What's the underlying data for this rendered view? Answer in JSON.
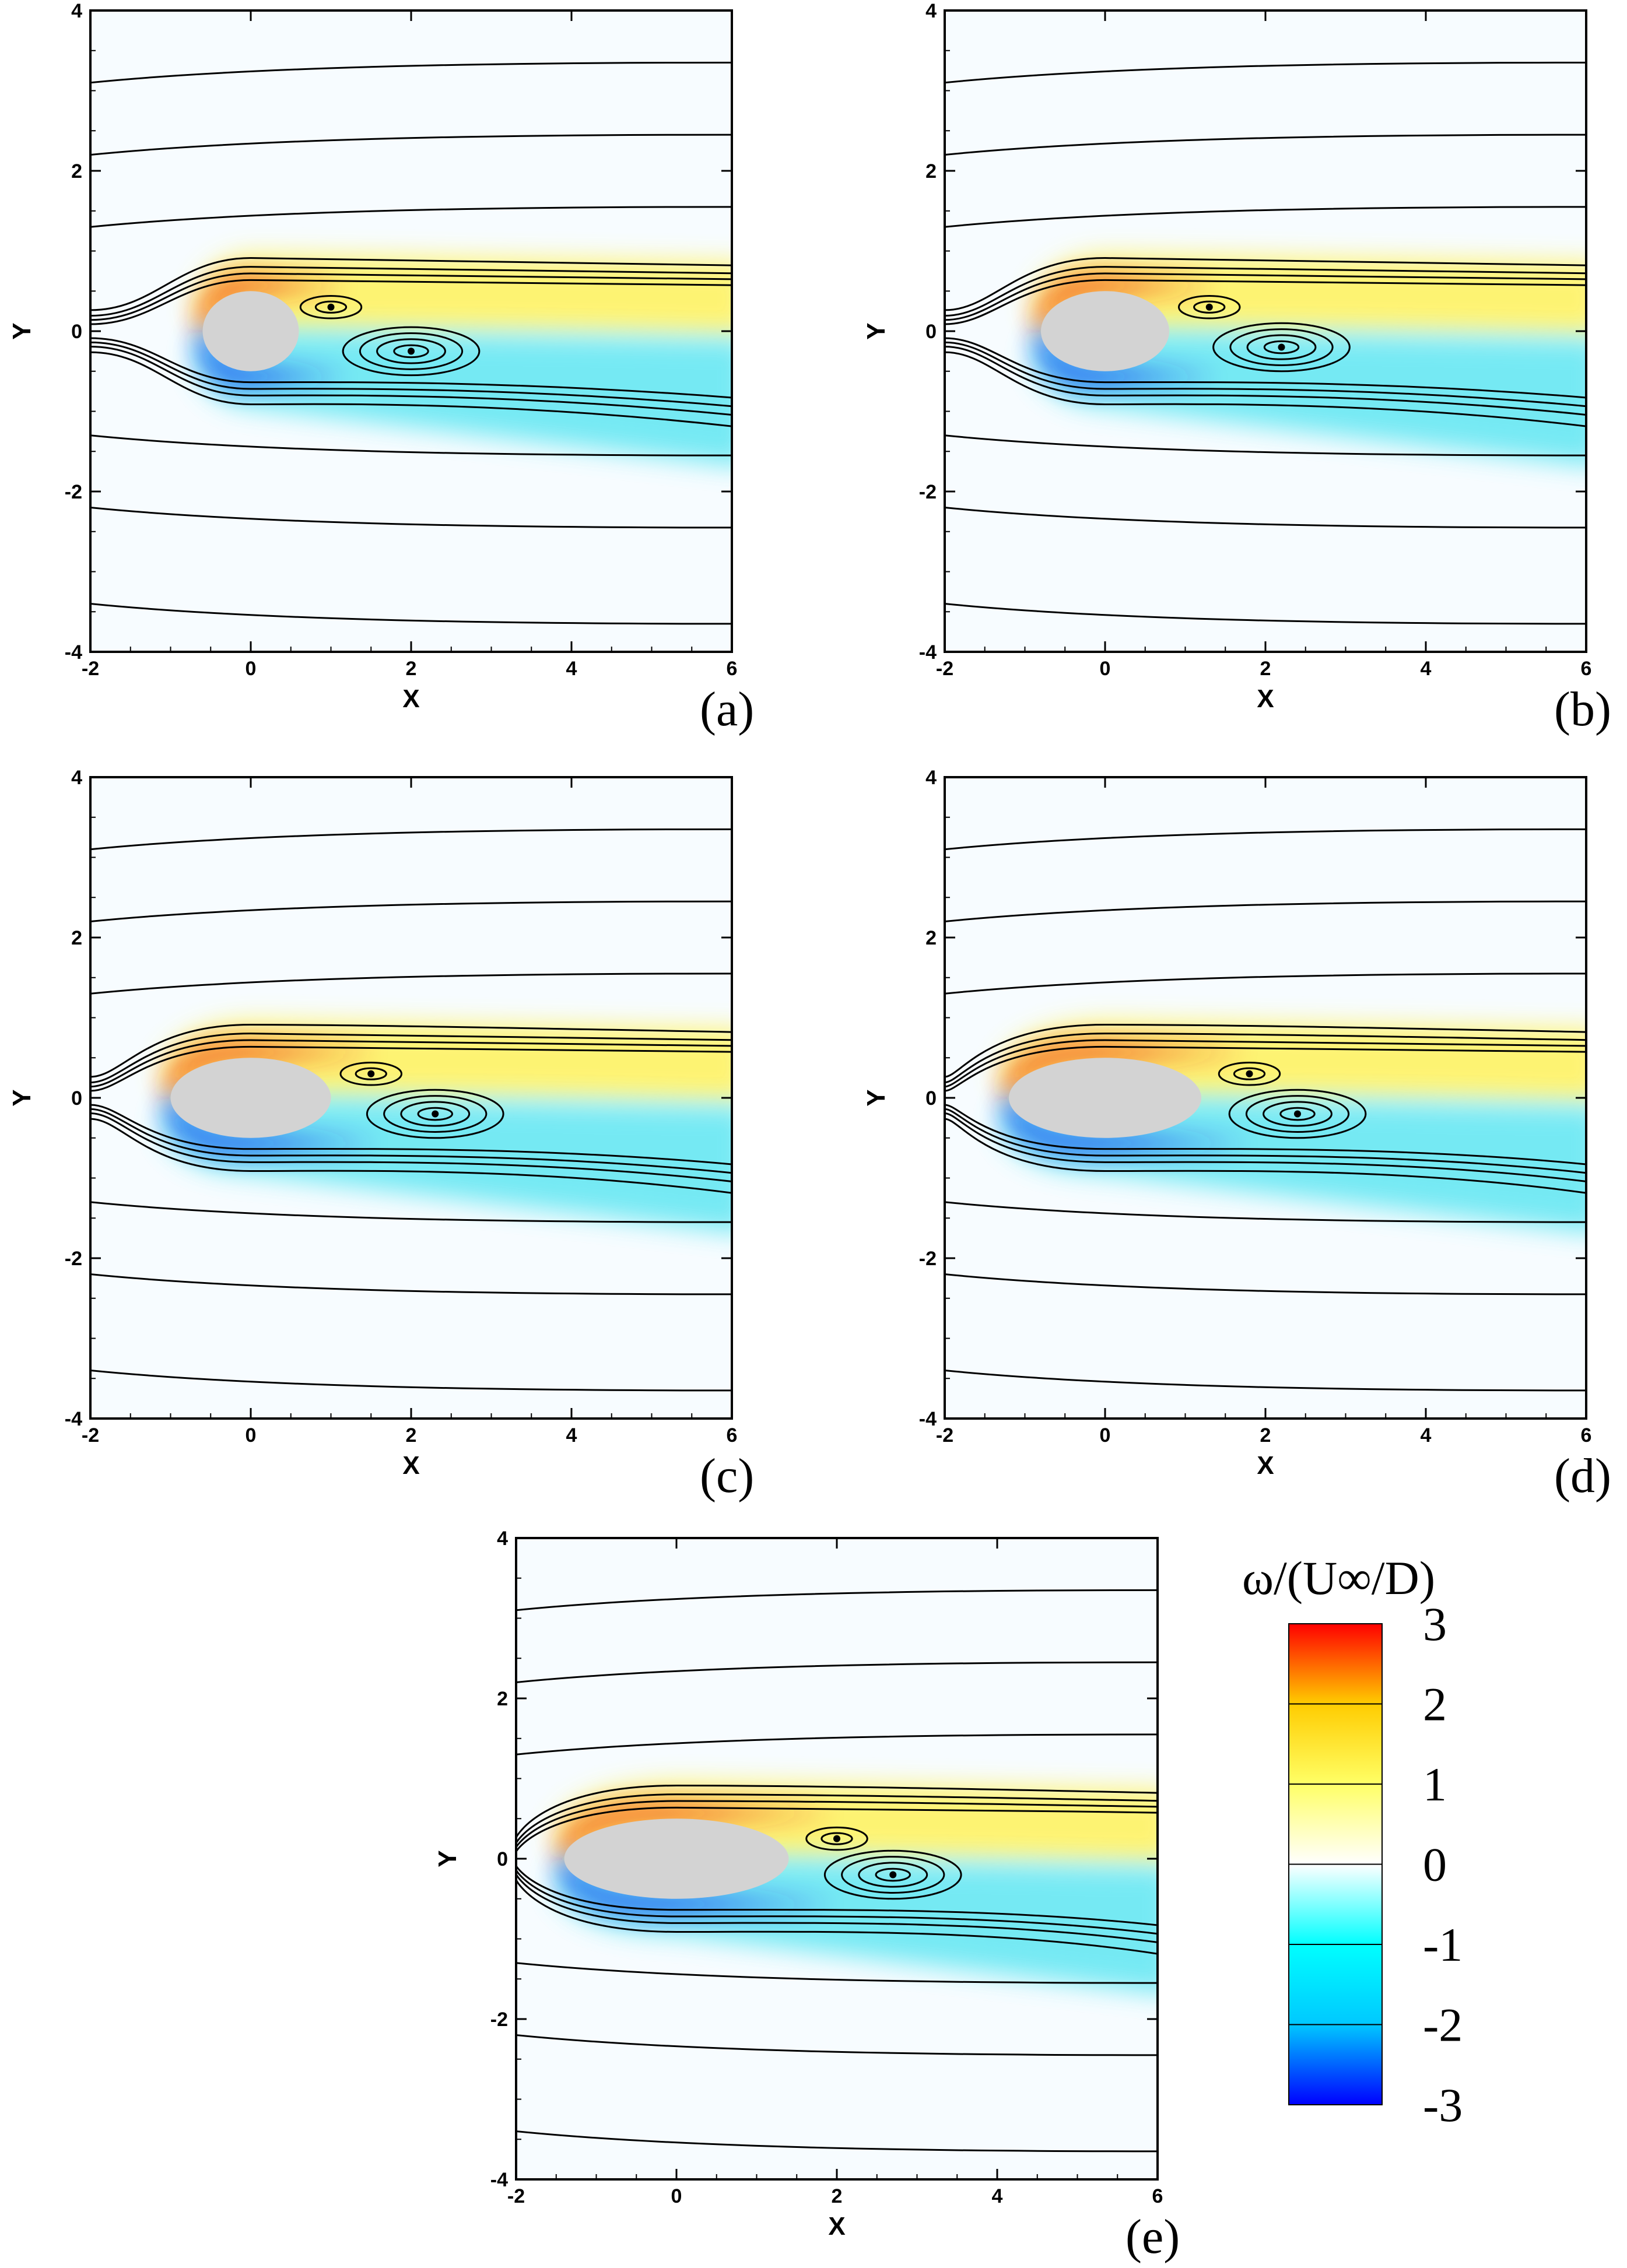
{
  "figure": {
    "colorbar": {
      "title": "ω/(U∞/D)",
      "ticks": [
        "3",
        "2",
        "1",
        "0",
        "-1",
        "-2",
        "-3"
      ],
      "range": [
        -3,
        3
      ],
      "colors": [
        "#0000ff",
        "#00c8ff",
        "#00ffff",
        "#ffffff",
        "#ffff66",
        "#ffcc00",
        "#ff0000"
      ]
    }
  },
  "chart_data": [
    {
      "type": "contour",
      "label": "(a)",
      "xlabel": "X",
      "ylabel": "Y",
      "xlim": [
        -2,
        6
      ],
      "ylim": [
        -4,
        4
      ],
      "xticks": [
        "-2",
        "0",
        "2",
        "4",
        "6"
      ],
      "yticks": [
        "4",
        "2",
        "0",
        "-2",
        "-4"
      ],
      "body_half_length": 0.6,
      "body_half_height": 0.5,
      "upper_vortex": [
        1.0,
        0.3
      ],
      "lower_vortex": [
        2.0,
        -0.25
      ]
    },
    {
      "type": "contour",
      "label": "(b)",
      "xlabel": "X",
      "ylabel": "Y",
      "xlim": [
        -2,
        6
      ],
      "ylim": [
        -4,
        4
      ],
      "xticks": [
        "-2",
        "0",
        "2",
        "4",
        "6"
      ],
      "yticks": [
        "4",
        "2",
        "0",
        "-2",
        "-4"
      ],
      "body_half_length": 0.8,
      "body_half_height": 0.5,
      "upper_vortex": [
        1.3,
        0.3
      ],
      "lower_vortex": [
        2.2,
        -0.2
      ]
    },
    {
      "type": "contour",
      "label": "(c)",
      "xlabel": "X",
      "ylabel": "Y",
      "xlim": [
        -2,
        6
      ],
      "ylim": [
        -4,
        4
      ],
      "xticks": [
        "-2",
        "0",
        "2",
        "4",
        "6"
      ],
      "yticks": [
        "4",
        "2",
        "0",
        "-2",
        "-4"
      ],
      "body_half_length": 1.0,
      "body_half_height": 0.5,
      "upper_vortex": [
        1.5,
        0.3
      ],
      "lower_vortex": [
        2.3,
        -0.2
      ]
    },
    {
      "type": "contour",
      "label": "(d)",
      "xlabel": "X",
      "ylabel": "Y",
      "xlim": [
        -2,
        6
      ],
      "ylim": [
        -4,
        4
      ],
      "xticks": [
        "-2",
        "0",
        "2",
        "4",
        "6"
      ],
      "yticks": [
        "4",
        "2",
        "0",
        "-2",
        "-4"
      ],
      "body_half_length": 1.2,
      "body_half_height": 0.5,
      "upper_vortex": [
        1.8,
        0.3
      ],
      "lower_vortex": [
        2.4,
        -0.2
      ]
    },
    {
      "type": "contour",
      "label": "(e)",
      "xlabel": "X",
      "ylabel": "Y",
      "xlim": [
        -2,
        6
      ],
      "ylim": [
        -4,
        4
      ],
      "xticks": [
        "-2",
        "0",
        "2",
        "4",
        "6"
      ],
      "yticks": [
        "4",
        "2",
        "0",
        "-2",
        "-4"
      ],
      "body_half_length": 1.4,
      "body_half_height": 0.5,
      "upper_vortex": [
        2.0,
        0.25
      ],
      "lower_vortex": [
        2.7,
        -0.2
      ]
    }
  ]
}
